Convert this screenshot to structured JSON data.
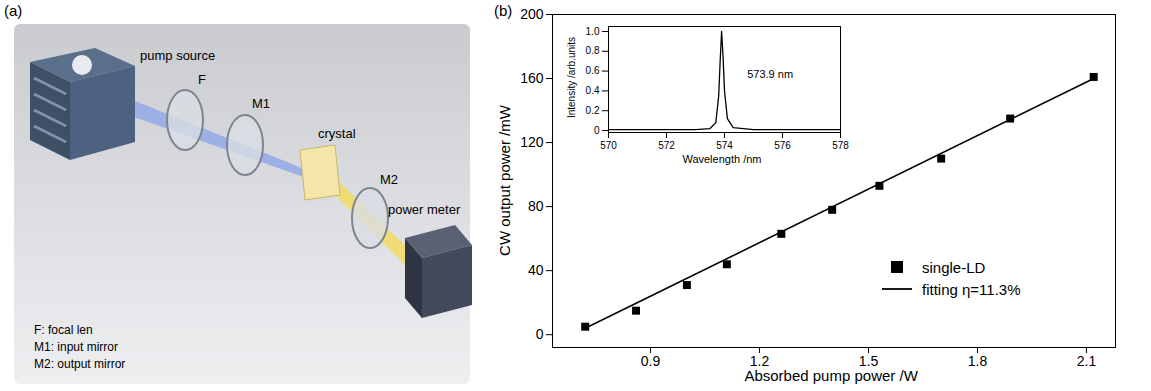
{
  "diagram": {
    "panel": "(a)",
    "labels": {
      "pump": "pump source",
      "lens": "F",
      "input_mirror": "M1",
      "crystal": "crystal",
      "output_mirror": "M2",
      "meter": "power meter"
    },
    "key": [
      "F: focal len",
      "M1: input mirror",
      "M2: output mirror"
    ]
  },
  "chart_data": [
    {
      "panel": "(b)",
      "type": "scatter",
      "x_label": "Absorbed pump power /W",
      "y_label": "CW output power /mW",
      "xlim": [
        0.63,
        2.18
      ],
      "xticks": [
        0.9,
        1.2,
        1.5,
        1.8,
        2.1
      ],
      "ylim": [
        -8,
        200
      ],
      "yticks": [
        0,
        40,
        80,
        120,
        160,
        200
      ],
      "legend": "lower right",
      "series": [
        {
          "name": "single-LD",
          "type": "scatter",
          "marker": "square",
          "color": "#000000",
          "x": [
            0.72,
            0.86,
            1.0,
            1.11,
            1.26,
            1.4,
            1.53,
            1.7,
            1.89,
            2.12
          ],
          "values": [
            5,
            15,
            31,
            44,
            63,
            78,
            93,
            110,
            135,
            161
          ]
        },
        {
          "name": "fitting η=11.3%",
          "type": "line",
          "line_style": "solid",
          "color": "#000000",
          "x": [
            0.72,
            2.12
          ],
          "values": [
            4,
            160
          ]
        }
      ]
    },
    {
      "type": "line",
      "x_label": "Wavelength /nm",
      "y_label": "Intensity /arb.units",
      "annotations": [
        "573.9 nm"
      ],
      "xlim": [
        570,
        578
      ],
      "xticks": [
        570,
        572,
        574,
        576,
        578
      ],
      "ylim": [
        -0.02,
        1.05
      ],
      "yticks": [
        0,
        0.2,
        0.4,
        0.6,
        0.8,
        {
          "value": 1,
          "label": "1.0"
        }
      ],
      "series": [
        {
          "name": null,
          "color": "#000000",
          "x": [
            570,
            573.0,
            573.5,
            573.7,
            573.8,
            573.85,
            573.9,
            573.95,
            574.0,
            574.1,
            574.3,
            575,
            578
          ],
          "values": [
            0.01,
            0.01,
            0.02,
            0.08,
            0.35,
            0.7,
            1.0,
            0.75,
            0.4,
            0.12,
            0.03,
            0.01,
            0.01
          ]
        }
      ]
    }
  ]
}
